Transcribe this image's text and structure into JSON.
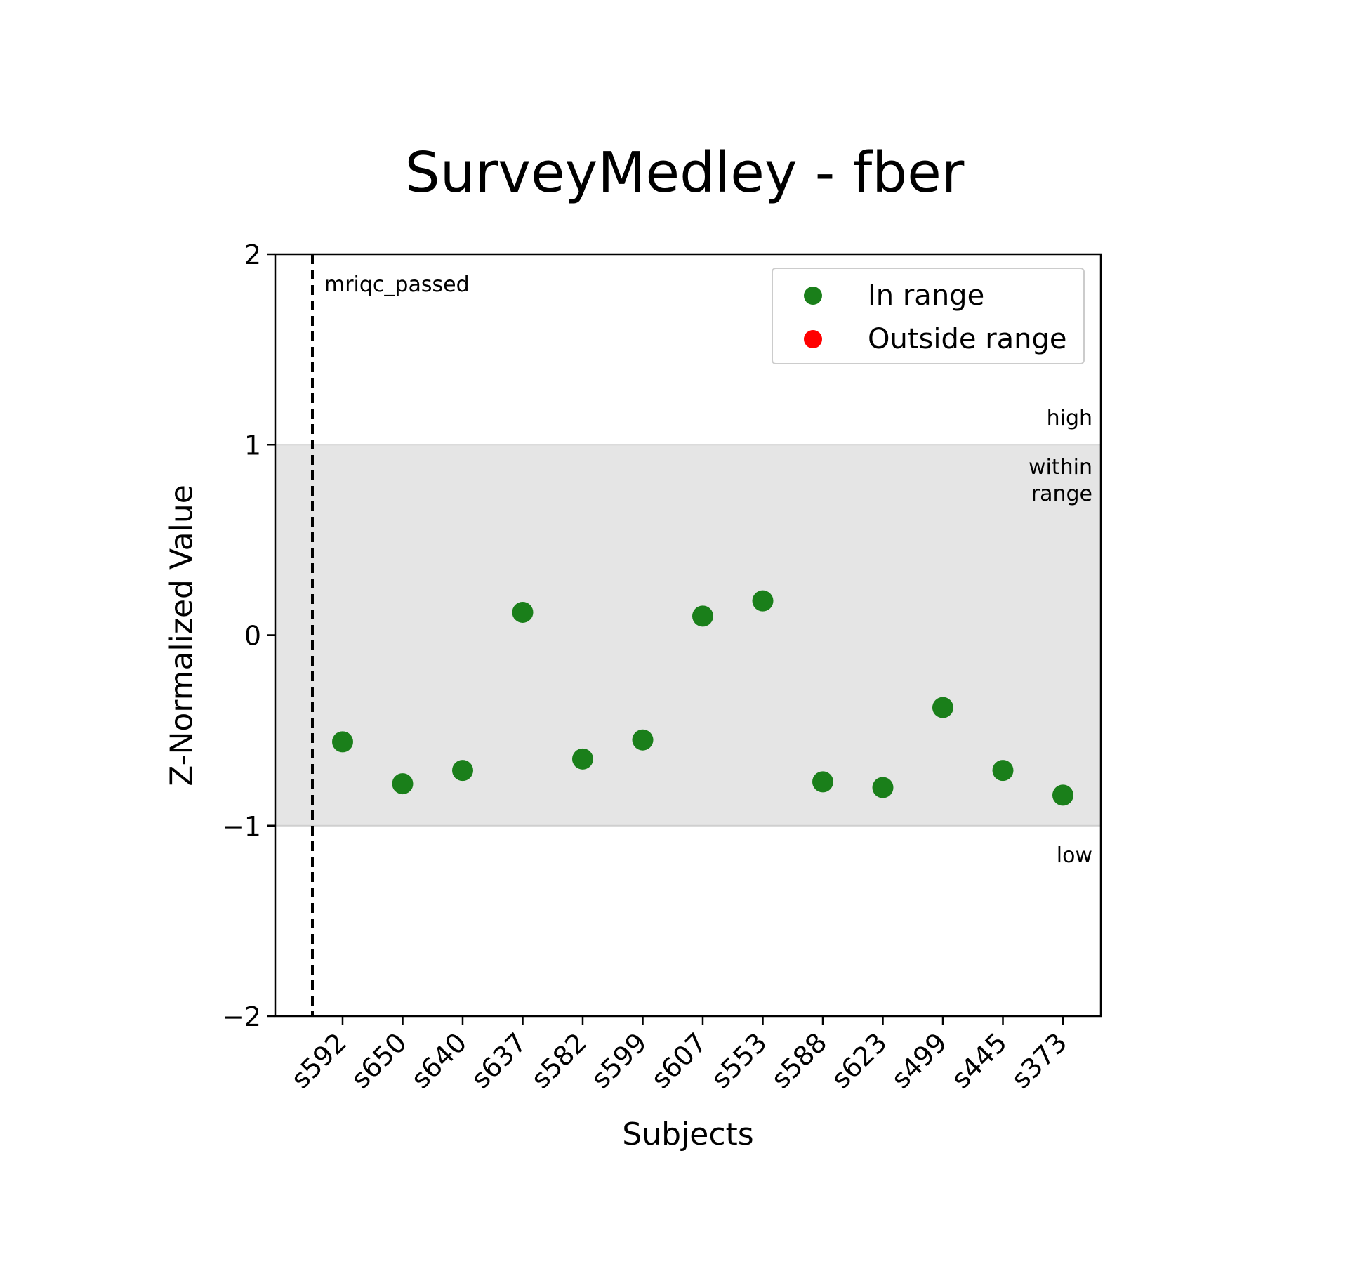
{
  "chart_data": {
    "type": "scatter",
    "title": "SurveyMedley - fber",
    "xlabel": "Subjects",
    "ylabel": "Z-Normalized Value",
    "ylim": [
      -2,
      2
    ],
    "yticks": [
      "2",
      "1",
      "0",
      "−1",
      "−2"
    ],
    "ytick_values": [
      2,
      1,
      0,
      -1,
      -2
    ],
    "categories": [
      "s592",
      "s650",
      "s640",
      "s637",
      "s582",
      "s599",
      "s607",
      "s553",
      "s588",
      "s623",
      "s499",
      "s445",
      "s373"
    ],
    "series": [
      {
        "name": "In range",
        "color": "#1a7f1a",
        "values": [
          -0.56,
          -0.78,
          -0.71,
          0.12,
          -0.65,
          -0.55,
          0.1,
          0.18,
          -0.77,
          -0.8,
          -0.38,
          -0.71,
          -0.84
        ]
      },
      {
        "name": "Outside range",
        "color": "#ff0000",
        "values": []
      }
    ],
    "range_band": {
      "low": -1,
      "high": 1,
      "color": "#e5e5e5"
    },
    "band_labels": {
      "high": "high",
      "within": [
        "within",
        "range"
      ],
      "low": "low"
    },
    "reference_line": {
      "label": "mriqc_passed",
      "style": "dashed"
    },
    "legend_position": "top-right",
    "grid": false
  }
}
